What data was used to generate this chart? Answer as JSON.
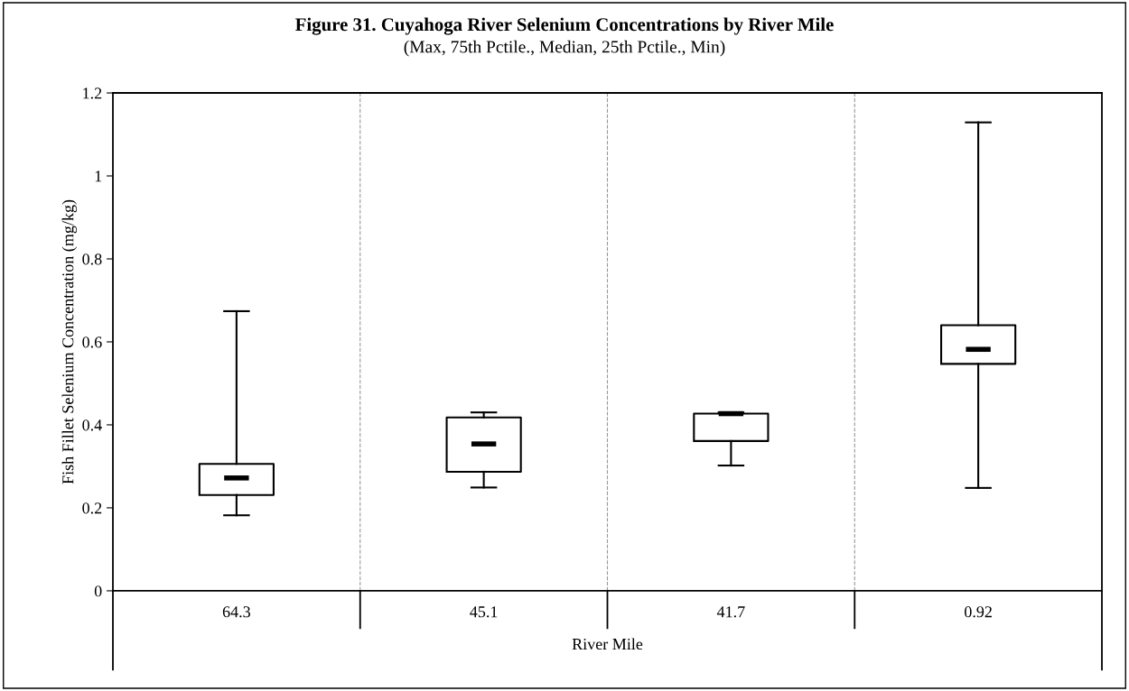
{
  "chart_data": {
    "type": "box",
    "title": "Figure 31. Cuyahoga River Selenium Concentrations by River Mile",
    "subtitle": "(Max, 75th Pctile., Median, 25th Pctile., Min)",
    "xlabel": "River Mile",
    "ylabel": "Fish Fillet Selenium Concentration (mg/kg)",
    "categories": [
      "64.3",
      "45.1",
      "41.7",
      "0.92"
    ],
    "boxes": [
      {
        "low": 0.182,
        "q1": 0.231,
        "median": 0.272,
        "q3": 0.306,
        "high": 0.674
      },
      {
        "low": 0.249,
        "q1": 0.287,
        "median": 0.354,
        "q3": 0.418,
        "high": 0.43
      },
      {
        "low": 0.302,
        "q1": 0.361,
        "median": 0.427,
        "q3": 0.427,
        "high": 0.43
      },
      {
        "low": 0.248,
        "q1": 0.547,
        "median": 0.582,
        "q3": 0.64,
        "high": 1.129
      }
    ],
    "ylim": [
      0,
      1.2
    ],
    "yticks": [
      0,
      0.2,
      0.4,
      0.6,
      0.8,
      1,
      1.2
    ],
    "grid": "x"
  }
}
